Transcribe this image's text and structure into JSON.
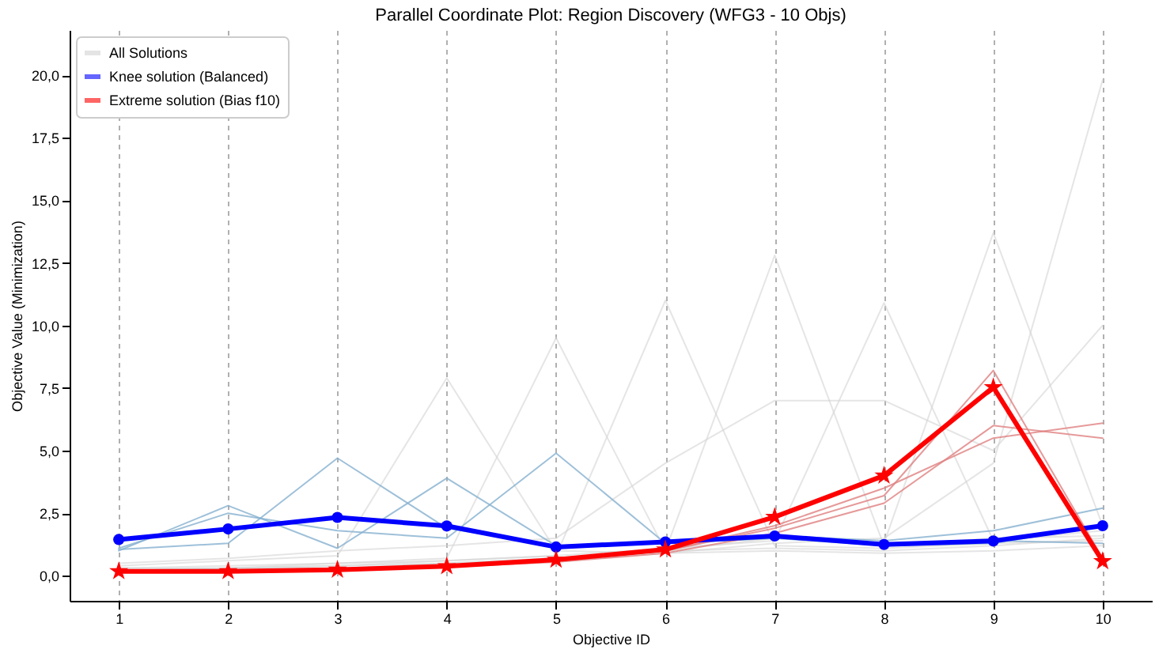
{
  "chart_data": {
    "type": "line",
    "title": "Parallel Coordinate Plot: Region Discovery (WFG3 - 10 Objs)",
    "xlabel": "Objective ID",
    "ylabel": "Objective Value (Minimization)",
    "x": [
      1,
      2,
      3,
      4,
      5,
      6,
      7,
      8,
      9,
      10
    ],
    "xlim": [
      0.55,
      10.45
    ],
    "xticks": [
      1,
      2,
      3,
      4,
      5,
      6,
      7,
      8,
      9,
      10
    ],
    "ylim": [
      -1,
      21.8
    ],
    "yticks": [
      {
        "value": 0,
        "label": "0,0"
      },
      {
        "value": 2.5,
        "label": "2,5"
      },
      {
        "value": 5,
        "label": "5,0"
      },
      {
        "value": 7.5,
        "label": "7,5"
      },
      {
        "value": 10,
        "label": "10,0"
      },
      {
        "value": 12.5,
        "label": "12,5"
      },
      {
        "value": 15,
        "label": "15,0"
      },
      {
        "value": 17.5,
        "label": "17,5"
      },
      {
        "value": 20,
        "label": "20,0"
      }
    ],
    "grid": "x",
    "legend": "top left",
    "series": [
      {
        "name": "All Solutions",
        "color": "#d3d3d3",
        "values": [
          0.4,
          0.6,
          0.8,
          7.9,
          1.0,
          0.9,
          1.0,
          0.9,
          1.0,
          1.2
        ]
      },
      {
        "color": "#d3d3d3",
        "values": [
          0.3,
          0.4,
          0.5,
          0.7,
          9.5,
          1.0,
          1.1,
          1.0,
          1.2,
          1.5
        ]
      },
      {
        "color": "#d3d3d3",
        "values": [
          0.2,
          0.3,
          0.4,
          0.6,
          0.8,
          11.0,
          1.2,
          1.1,
          1.3,
          1.4
        ]
      },
      {
        "color": "#d3d3d3",
        "values": [
          0.2,
          0.3,
          0.4,
          0.5,
          0.7,
          1.0,
          12.8,
          1.2,
          1.5,
          1.6
        ]
      },
      {
        "color": "#d3d3d3",
        "values": [
          0.3,
          0.3,
          0.5,
          0.6,
          0.8,
          1.1,
          1.4,
          10.9,
          1.4,
          1.8
        ]
      },
      {
        "color": "#d3d3d3",
        "values": [
          0.2,
          0.3,
          0.3,
          0.5,
          0.7,
          1.0,
          1.5,
          1.3,
          13.7,
          2.0
        ]
      },
      {
        "color": "#d3d3d3",
        "values": [
          0.2,
          0.2,
          0.3,
          0.4,
          0.6,
          0.9,
          1.3,
          1.5,
          4.5,
          19.8
        ]
      },
      {
        "color": "#d3d3d3",
        "values": [
          0.5,
          0.7,
          1.0,
          1.2,
          1.5,
          4.5,
          7.0,
          7.0,
          5.0,
          10.0
        ]
      },
      {
        "color": "#86b0d0",
        "values": [
          1.0,
          2.8,
          1.1,
          3.9,
          1.2,
          1.3,
          1.5,
          1.2,
          1.3,
          2.0
        ]
      },
      {
        "color": "#86b0d0",
        "values": [
          1.05,
          1.3,
          4.7,
          1.9,
          1.2,
          1.3,
          1.6,
          1.4,
          1.8,
          2.7
        ]
      },
      {
        "color": "#86b0d0",
        "values": [
          1.1,
          2.5,
          1.8,
          1.5,
          4.9,
          1.3,
          1.5,
          1.3,
          1.4,
          1.3
        ]
      },
      {
        "color": "#e08080",
        "values": [
          0.2,
          0.2,
          0.3,
          0.4,
          0.6,
          1.0,
          1.9,
          3.2,
          8.2,
          0.7
        ]
      },
      {
        "color": "#e08080",
        "values": [
          0.2,
          0.2,
          0.25,
          0.35,
          0.55,
          0.9,
          1.7,
          2.9,
          6.0,
          5.5
        ]
      },
      {
        "color": "#e08080",
        "values": [
          0.15,
          0.2,
          0.25,
          0.4,
          0.6,
          1.0,
          2.0,
          3.5,
          5.5,
          6.1
        ]
      },
      {
        "name": "Knee solution (Balanced)",
        "color": "#0000ff",
        "marker": "circle",
        "values": [
          1.45,
          1.87,
          2.33,
          1.99,
          1.15,
          1.35,
          1.59,
          1.25,
          1.39,
          2.0
        ]
      },
      {
        "name": "Extreme solution (Bias f10)",
        "color": "#ff0000",
        "marker": "star",
        "values": [
          0.18,
          0.18,
          0.24,
          0.38,
          0.64,
          1.05,
          2.35,
          4.0,
          7.53,
          0.58
        ]
      }
    ]
  }
}
